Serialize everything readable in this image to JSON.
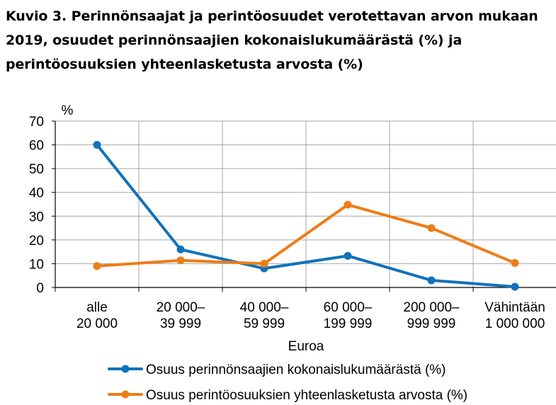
{
  "title_lines": [
    "Kuvio 3. Perinnönsaajat ja perintöosuudet verotettavan arvon mukaan",
    "2019, osuudet perinnönsaajien kokonaislukumäärästä (%) ja",
    "perintöosuuksien yhteenlasketusta arvosta (%)"
  ],
  "colors": {
    "series_1": "#1072BA",
    "series_2": "#EE7D16",
    "grid": "#a6a6a6",
    "axis": "#000000"
  },
  "chart_data": {
    "type": "line",
    "title": "Kuvio 3. Perinnönsaajat ja perintöosuudet verotettavan arvon mukaan 2019, osuudet perinnönsaajien kokonaislukumäärästä (%) ja perintöosuuksien yhteenlasketusta arvosta (%)",
    "ylabel": "%",
    "xlabel": "Euroa",
    "ylim": [
      0,
      70
    ],
    "yticks": [
      0,
      10,
      20,
      30,
      40,
      50,
      60,
      70
    ],
    "grid": true,
    "legend_position": "bottom",
    "categories": [
      [
        "alle",
        "20 000"
      ],
      [
        "20 000–",
        "39 999"
      ],
      [
        "40 000–",
        "59 999"
      ],
      [
        "60 000–",
        "199 999"
      ],
      [
        "200 000–",
        "999 999"
      ],
      [
        "Vähintään",
        "1 000 000"
      ]
    ],
    "series": [
      {
        "name": "Osuus perinnönsaajien kokonaislukumäärästä (%)",
        "color": "#1072BA",
        "values": [
          60,
          16,
          8,
          13.3,
          3,
          0.3
        ]
      },
      {
        "name": "Osuus perintöosuuksien yhteenlasketusta arvosta (%)",
        "color": "#EE7D16",
        "values": [
          9,
          11.4,
          10,
          34.8,
          25,
          10.3
        ]
      }
    ]
  }
}
